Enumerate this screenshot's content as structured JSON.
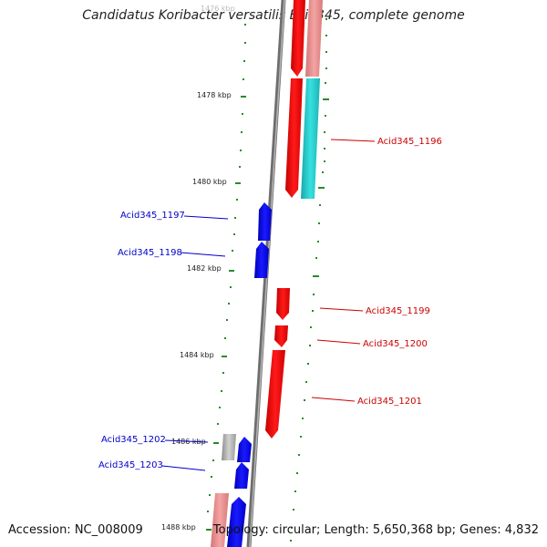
{
  "title": "Candidatus Koribacter versatilis Ellin345, complete genome",
  "footer": {
    "accession": "Accession: NC_008009",
    "summary": "Topology: circular; Length: 5,650,368 bp; Genes: 4,832"
  },
  "scale": {
    "ticks": [
      "1476 kbp",
      "1478 kbp",
      "1480 kbp",
      "1482 kbp",
      "1484 kbp",
      "1486 kbp",
      "1488 kbp"
    ]
  },
  "genes": {
    "forward_labels": [
      "Acid345_1196",
      "Acid345_1199",
      "Acid345_1200",
      "Acid345_1201"
    ],
    "reverse_labels": [
      "Acid345_1197",
      "Acid345_1198",
      "Acid345_1202",
      "Acid345_1203"
    ]
  },
  "colors": {
    "forward_gene": "#ff0000",
    "forward_gene_light": "#e88a8a",
    "reverse_gene": "#0000ff",
    "rna_feature": "#1cc6c6",
    "other_feature": "#aaaaaa",
    "backbone": "#808080",
    "gc_marks": "#2a8a2a",
    "forward_label": "#cc0000",
    "reverse_label": "#0000cc"
  }
}
